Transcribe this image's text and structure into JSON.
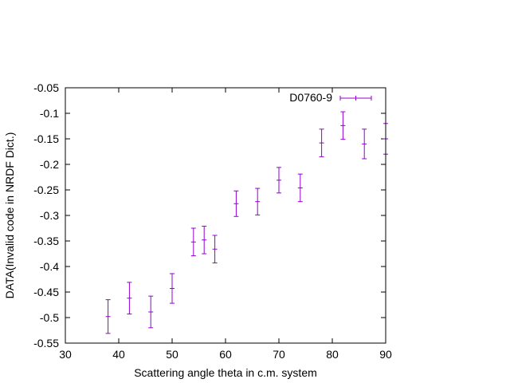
{
  "chart_data": {
    "type": "scatter",
    "title": "",
    "xlabel": "Scattering angle theta in c.m. system",
    "ylabel": "DATA(Invalid code in NRDF Dict.)",
    "xlim": [
      30,
      90
    ],
    "ylim": [
      -0.55,
      -0.05
    ],
    "x_ticks": [
      "30",
      "40",
      "50",
      "60",
      "70",
      "80",
      "90"
    ],
    "y_ticks": [
      "-0.55",
      "-0.5",
      "-0.45",
      "-0.4",
      "-0.35",
      "-0.3",
      "-0.25",
      "-0.2",
      "-0.15",
      "-0.1",
      "-0.05"
    ],
    "grid": false,
    "legend_position": "top-right",
    "series": [
      {
        "name": "D0760-9",
        "color": "#9400d3",
        "points": [
          {
            "x": 38,
            "y": -0.498,
            "err": 0.033
          },
          {
            "x": 42,
            "y": -0.462,
            "err": 0.031
          },
          {
            "x": 46,
            "y": -0.489,
            "err": 0.031
          },
          {
            "x": 50,
            "y": -0.443,
            "err": 0.029
          },
          {
            "x": 54,
            "y": -0.352,
            "err": 0.027
          },
          {
            "x": 56,
            "y": -0.348,
            "err": 0.027
          },
          {
            "x": 58,
            "y": -0.366,
            "err": 0.027
          },
          {
            "x": 62,
            "y": -0.277,
            "err": 0.025
          },
          {
            "x": 66,
            "y": -0.273,
            "err": 0.026
          },
          {
            "x": 70,
            "y": -0.231,
            "err": 0.025
          },
          {
            "x": 74,
            "y": -0.246,
            "err": 0.027
          },
          {
            "x": 78,
            "y": -0.158,
            "err": 0.027
          },
          {
            "x": 82,
            "y": -0.124,
            "err": 0.027
          },
          {
            "x": 86,
            "y": -0.16,
            "err": 0.029
          },
          {
            "x": 90,
            "y": -0.15,
            "err": 0.03
          }
        ]
      }
    ]
  }
}
